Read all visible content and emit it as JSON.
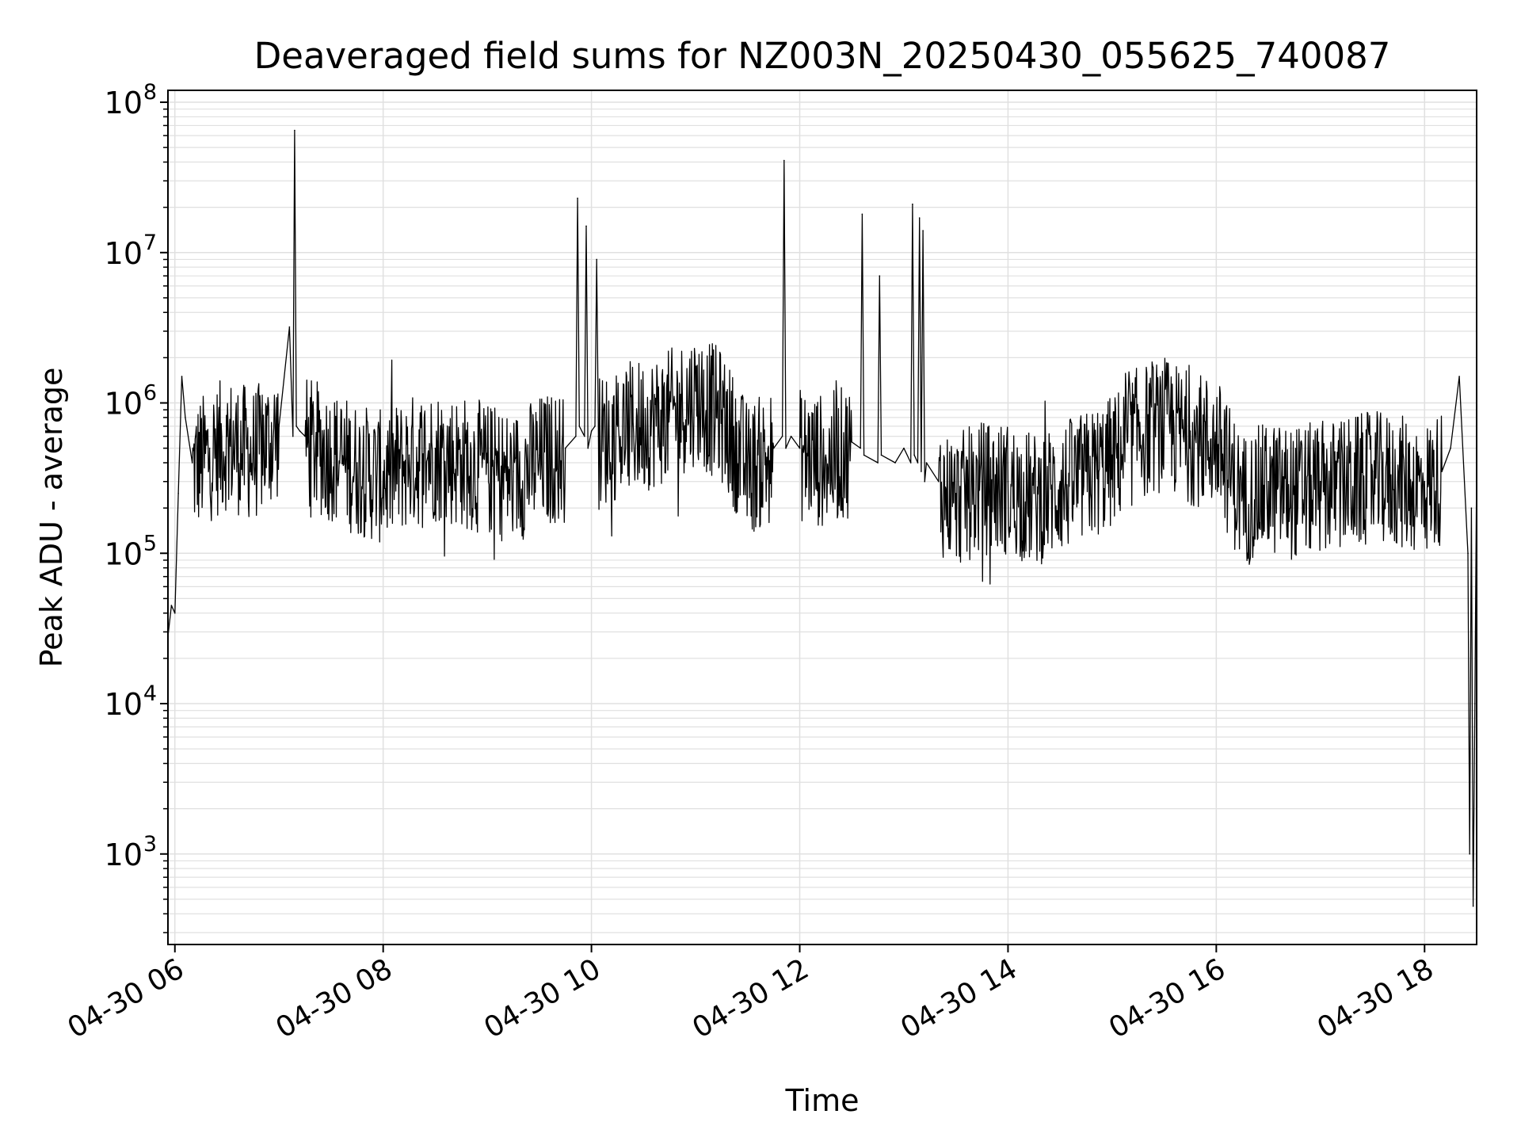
{
  "chart_data": {
    "type": "line",
    "title": "Deaveraged field sums for NZ003N_20250430_055625_740087",
    "xlabel": "Time",
    "ylabel": "Peak ADU - average",
    "yscale": "log",
    "ylim": [
      250,
      120000000
    ],
    "xlim": [
      "2025-04-30 05:56",
      "2025-04-30 18:30"
    ],
    "grid": true,
    "line_color": "#000000",
    "grid_color": "#e0e0e0",
    "x_ticks": [
      {
        "time": "2025-04-30 06:00",
        "label": "04-30 06"
      },
      {
        "time": "2025-04-30 08:00",
        "label": "04-30 08"
      },
      {
        "time": "2025-04-30 10:00",
        "label": "04-30 10"
      },
      {
        "time": "2025-04-30 12:00",
        "label": "04-30 12"
      },
      {
        "time": "2025-04-30 14:00",
        "label": "04-30 14"
      },
      {
        "time": "2025-04-30 16:00",
        "label": "04-30 16"
      },
      {
        "time": "2025-04-30 18:00",
        "label": "04-30 18"
      }
    ],
    "y_ticks": [
      {
        "value": 1000,
        "base": "10",
        "exp": "3"
      },
      {
        "value": 10000,
        "base": "10",
        "exp": "4"
      },
      {
        "value": 100000,
        "base": "10",
        "exp": "5"
      },
      {
        "value": 1000000,
        "base": "10",
        "exp": "6"
      },
      {
        "value": 10000000,
        "base": "10",
        "exp": "7"
      },
      {
        "value": 100000000,
        "base": "10",
        "exp": "8"
      }
    ],
    "series": [
      {
        "x": [
          "2025-04-30 05:56",
          "2025-04-30 05:58",
          "2025-04-30 06:00",
          "2025-04-30 06:02",
          "2025-04-30 06:04",
          "2025-04-30 06:06",
          "2025-04-30 06:10",
          "2025-04-30 06:20",
          "2025-04-30 06:30",
          "2025-04-30 06:45",
          "2025-04-30 07:00",
          "2025-04-30 07:06",
          "2025-04-30 07:08",
          "2025-04-30 07:09",
          "2025-04-30 07:10",
          "2025-04-30 07:12",
          "2025-04-30 07:15",
          "2025-04-30 07:30",
          "2025-04-30 07:45",
          "2025-04-30 08:00",
          "2025-04-30 08:15",
          "2025-04-30 08:30",
          "2025-04-30 08:45",
          "2025-04-30 09:00",
          "2025-04-30 09:15",
          "2025-04-30 09:30",
          "2025-04-30 09:45",
          "2025-04-30 09:51",
          "2025-04-30 09:52",
          "2025-04-30 09:53",
          "2025-04-30 09:56",
          "2025-04-30 09:57",
          "2025-04-30 09:58",
          "2025-04-30 10:00",
          "2025-04-30 10:02",
          "2025-04-30 10:03",
          "2025-04-30 10:04",
          "2025-04-30 10:15",
          "2025-04-30 10:30",
          "2025-04-30 10:45",
          "2025-04-30 11:00",
          "2025-04-30 11:15",
          "2025-04-30 11:30",
          "2025-04-30 11:45",
          "2025-04-30 11:50",
          "2025-04-30 11:51",
          "2025-04-30 11:52",
          "2025-04-30 11:55",
          "2025-04-30 12:00",
          "2025-04-30 12:15",
          "2025-04-30 12:30",
          "2025-04-30 12:35",
          "2025-04-30 12:36",
          "2025-04-30 12:37",
          "2025-04-30 12:45",
          "2025-04-30 12:46",
          "2025-04-30 12:47",
          "2025-04-30 12:55",
          "2025-04-30 13:00",
          "2025-04-30 13:04",
          "2025-04-30 13:05",
          "2025-04-30 13:06",
          "2025-04-30 13:08",
          "2025-04-30 13:09",
          "2025-04-30 13:10",
          "2025-04-30 13:11",
          "2025-04-30 13:12",
          "2025-04-30 13:13",
          "2025-04-30 13:20",
          "2025-04-30 13:30",
          "2025-04-30 13:45",
          "2025-04-30 14:00",
          "2025-04-30 14:15",
          "2025-04-30 14:30",
          "2025-04-30 14:45",
          "2025-04-30 15:00",
          "2025-04-30 15:15",
          "2025-04-30 15:30",
          "2025-04-30 15:45",
          "2025-04-30 16:00",
          "2025-04-30 16:15",
          "2025-04-30 16:30",
          "2025-04-30 16:45",
          "2025-04-30 17:00",
          "2025-04-30 17:15",
          "2025-04-30 17:30",
          "2025-04-30 17:45",
          "2025-04-30 18:00",
          "2025-04-30 18:10",
          "2025-04-30 18:15",
          "2025-04-30 18:20",
          "2025-04-30 18:25",
          "2025-04-30 18:26",
          "2025-04-30 18:27",
          "2025-04-30 18:28",
          "2025-04-30 18:29",
          "2025-04-30 18:30"
        ],
        "y": [
          28000,
          45000,
          40000,
          250000,
          1500000,
          800000,
          400000,
          500000,
          600000,
          500000,
          700000,
          3200000,
          600000,
          65000000,
          700000,
          650000,
          600000,
          500000,
          400000,
          350000,
          450000,
          500000,
          450000,
          400000,
          350000,
          450000,
          500000,
          600000,
          23000000,
          700000,
          600000,
          15000000,
          500000,
          650000,
          700000,
          9000000,
          600000,
          700000,
          800000,
          900000,
          1200000,
          900000,
          400000,
          500000,
          600000,
          41000000,
          500000,
          600000,
          500000,
          450000,
          550000,
          500000,
          18000000,
          450000,
          400000,
          7000000,
          450000,
          400000,
          500000,
          400000,
          21000000,
          450000,
          400000,
          17000000,
          350000,
          14000000,
          300000,
          400000,
          300000,
          250000,
          300000,
          300000,
          250000,
          300000,
          350000,
          450000,
          700000,
          800000,
          650000,
          600000,
          250000,
          300000,
          280000,
          300000,
          320000,
          350000,
          330000,
          300000,
          350000,
          500000,
          1500000,
          100000,
          1000,
          200000,
          450,
          10000,
          400000
        ]
      }
    ]
  }
}
